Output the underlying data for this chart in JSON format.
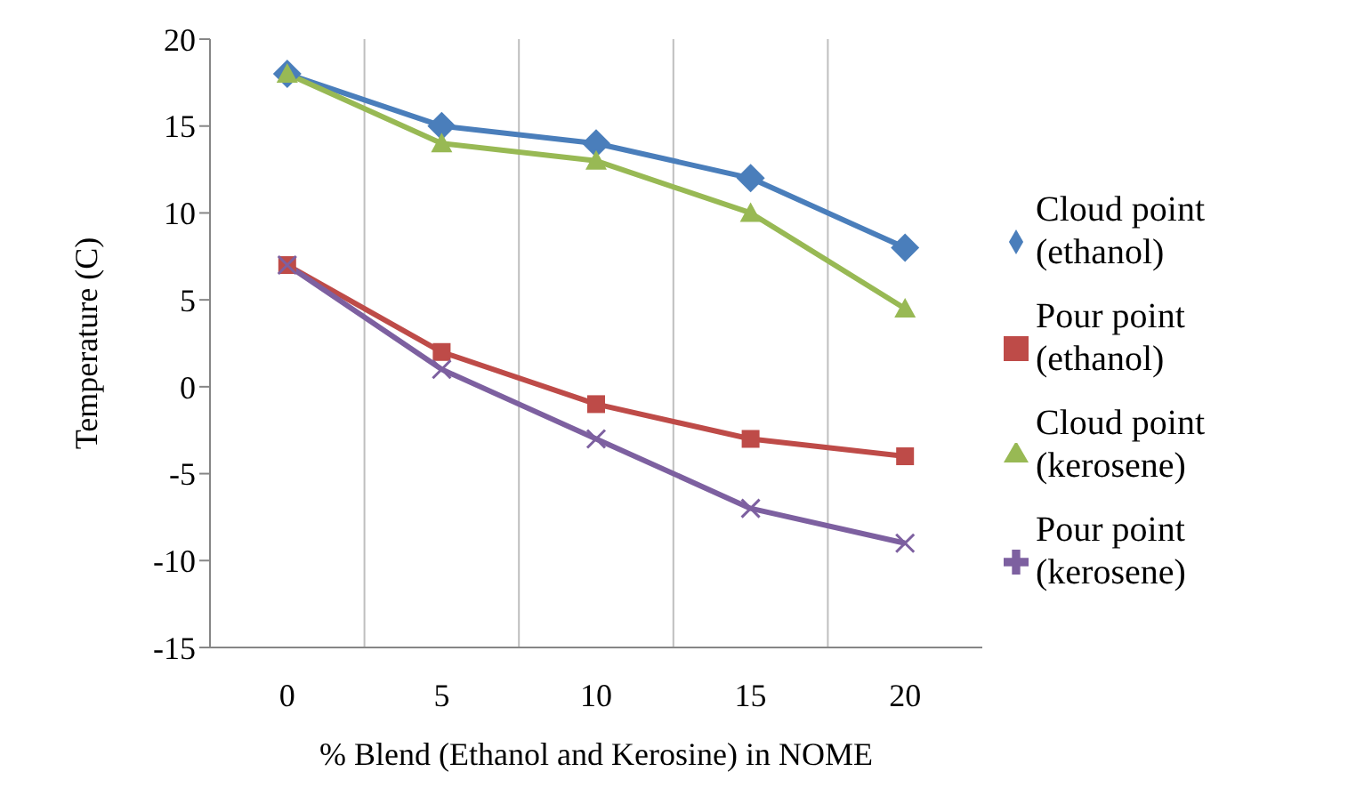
{
  "chart_data": {
    "type": "line",
    "xlabel": "%  Blend (Ethanol and Kerosine) in NOME",
    "ylabel": "Temperature (C)",
    "categories": [
      "0",
      "5",
      "10",
      "15",
      "20"
    ],
    "ylim": [
      -15,
      20
    ],
    "yticks": [
      -15,
      -10,
      -5,
      0,
      5,
      10,
      15,
      20
    ],
    "grid": "x",
    "legend": "right",
    "series": [
      {
        "name": "Cloud point (ethanol)",
        "color": "#4a7ebb",
        "marker": "diamond",
        "values": [
          18,
          15,
          14,
          12,
          8
        ]
      },
      {
        "name": "Pour point (ethanol)",
        "color": "#be4b48",
        "marker": "square",
        "values": [
          7,
          2,
          -1,
          -3,
          -4
        ]
      },
      {
        "name": "Cloud point (kerosene)",
        "color": "#98b954",
        "marker": "triangle",
        "values": [
          18,
          14,
          13,
          10,
          4.5
        ]
      },
      {
        "name": "Pour point (kerosene)",
        "color": "#7d60a0",
        "marker": "cross",
        "values": [
          7,
          1,
          -3,
          -7,
          -9
        ]
      }
    ]
  }
}
